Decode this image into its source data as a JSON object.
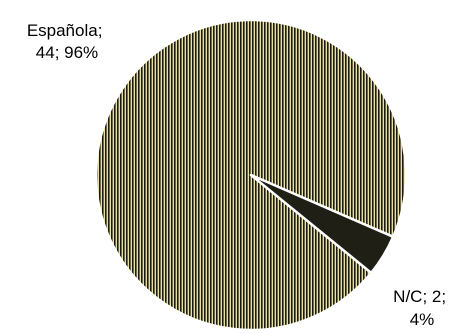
{
  "chart_data": {
    "type": "pie",
    "title": "",
    "slices": [
      {
        "label": "Española",
        "value": 44,
        "percent": "96%"
      },
      {
        "label": "N/C",
        "value": 2,
        "percent": "4%"
      }
    ],
    "data_labels": [
      {
        "line1": "Española;",
        "line2": "44; 96%"
      },
      {
        "line1": "N/C; 2;",
        "line2": "4%"
      }
    ],
    "colors": {
      "stripe_dark": "#1c1b10",
      "stripe_light": "#e8e1a6",
      "slice_solid": "#1f1f15",
      "edge": "#ffffff"
    },
    "legend": "none"
  }
}
